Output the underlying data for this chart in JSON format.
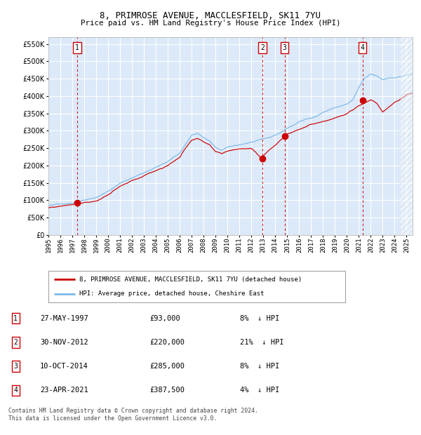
{
  "title1": "8, PRIMROSE AVENUE, MACCLESFIELD, SK11 7YU",
  "title2": "Price paid vs. HM Land Registry's House Price Index (HPI)",
  "ylim": [
    0,
    570000
  ],
  "xlim_start": 1995.0,
  "xlim_end": 2025.5,
  "yticks": [
    0,
    50000,
    100000,
    150000,
    200000,
    250000,
    300000,
    350000,
    400000,
    450000,
    500000,
    550000
  ],
  "ytick_labels": [
    "£0",
    "£50K",
    "£100K",
    "£150K",
    "£200K",
    "£250K",
    "£300K",
    "£350K",
    "£400K",
    "£450K",
    "£500K",
    "£550K"
  ],
  "xtick_years": [
    1995,
    1996,
    1997,
    1998,
    1999,
    2000,
    2001,
    2002,
    2003,
    2004,
    2005,
    2006,
    2007,
    2008,
    2009,
    2010,
    2011,
    2012,
    2013,
    2014,
    2015,
    2016,
    2017,
    2018,
    2019,
    2020,
    2021,
    2022,
    2023,
    2024,
    2025
  ],
  "sales": [
    {
      "num": 1,
      "date": "27-MAY-1997",
      "year": 1997.41,
      "price": 93000,
      "pct": "8%",
      "dir": "↓"
    },
    {
      "num": 2,
      "date": "30-NOV-2012",
      "year": 2012.92,
      "price": 220000,
      "pct": "21%",
      "dir": "↓"
    },
    {
      "num": 3,
      "date": "10-OCT-2014",
      "year": 2014.78,
      "price": 285000,
      "pct": "8%",
      "dir": "↓"
    },
    {
      "num": 4,
      "date": "23-APR-2021",
      "year": 2021.31,
      "price": 387500,
      "pct": "4%",
      "dir": "↓"
    }
  ],
  "legend_line1": "8, PRIMROSE AVENUE, MACCLESFIELD, SK11 7YU (detached house)",
  "legend_line2": "HPI: Average price, detached house, Cheshire East",
  "footer1": "Contains HM Land Registry data © Crown copyright and database right 2024.",
  "footer2": "This data is licensed under the Open Government Licence v3.0.",
  "bg_color": "#dce9f8",
  "hpi_color": "#7ab8e8",
  "sale_color": "#cc0000",
  "grid_color": "#ffffff",
  "hatch_color": "#b8cfe0",
  "hpi_waypoints_x": [
    1995,
    1996,
    1997,
    1998,
    1999,
    2000,
    2001,
    2002,
    2003,
    2004,
    2005,
    2006,
    2007,
    2007.5,
    2008,
    2008.5,
    2009,
    2009.5,
    2010,
    2011,
    2012,
    2012.5,
    2013,
    2013.5,
    2014,
    2014.5,
    2015,
    2015.5,
    2016,
    2016.5,
    2017,
    2017.5,
    2018,
    2019,
    2020,
    2020.5,
    2021,
    2021.5,
    2022,
    2022.5,
    2023,
    2023.5,
    2024,
    2024.5,
    2025,
    2025.5
  ],
  "hpi_waypoints_y": [
    84000,
    88000,
    93000,
    103000,
    112000,
    130000,
    152000,
    168000,
    183000,
    200000,
    215000,
    240000,
    292000,
    298000,
    285000,
    275000,
    255000,
    248000,
    255000,
    262000,
    270000,
    273000,
    277000,
    280000,
    288000,
    296000,
    308000,
    316000,
    326000,
    332000,
    338000,
    344000,
    355000,
    368000,
    378000,
    390000,
    425000,
    450000,
    462000,
    455000,
    445000,
    450000,
    452000,
    455000,
    460000,
    462000
  ],
  "price_waypoints_x": [
    1995,
    1996,
    1997.41,
    1998,
    1999,
    2000,
    2001,
    2002,
    2003,
    2004,
    2005,
    2006,
    2007,
    2007.5,
    2008,
    2008.5,
    2009,
    2009.5,
    2010,
    2011,
    2012,
    2012.92,
    2013,
    2013.5,
    2014.78,
    2015,
    2015.5,
    2016,
    2017,
    2018,
    2019,
    2020,
    2021.31,
    2022,
    2022.5,
    2023,
    2024,
    2025,
    2025.5
  ],
  "price_waypoints_y": [
    78000,
    83000,
    93000,
    98000,
    103000,
    122000,
    143000,
    158000,
    172000,
    188000,
    203000,
    228000,
    278000,
    282000,
    270000,
    260000,
    238000,
    232000,
    240000,
    248000,
    252000,
    220000,
    230000,
    248000,
    285000,
    295000,
    302000,
    312000,
    325000,
    336000,
    348000,
    358000,
    387500,
    400000,
    390000,
    365000,
    395000,
    415000,
    420000
  ]
}
